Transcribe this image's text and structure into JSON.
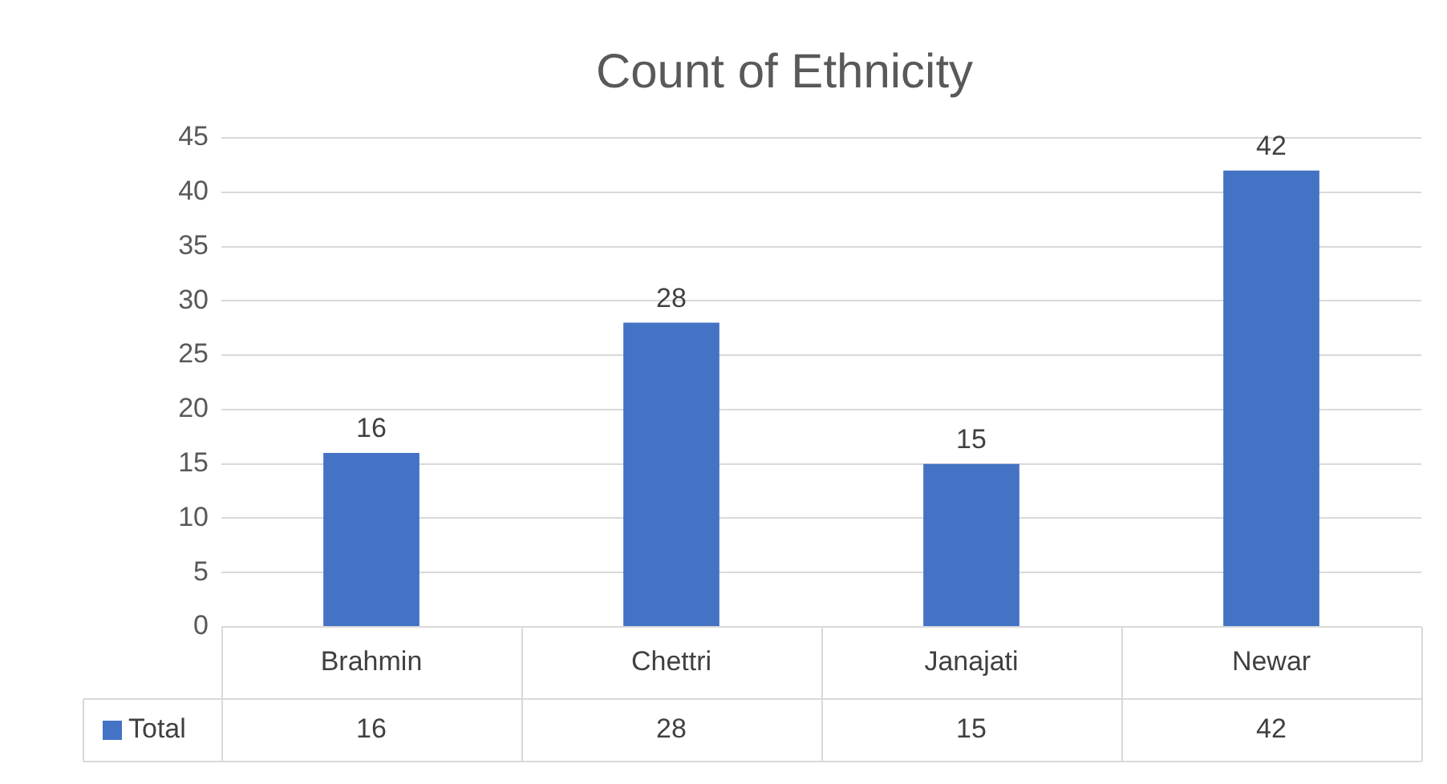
{
  "chart_data": {
    "type": "bar",
    "title": "Count of Ethnicity",
    "categories": [
      "Brahmin",
      "Chettri",
      "Janajati",
      "Newar"
    ],
    "series": [
      {
        "name": "Total",
        "color": "#4472c4",
        "values": [
          16,
          28,
          15,
          42
        ]
      }
    ],
    "ylim": [
      0,
      45
    ],
    "yticks": [
      0,
      5,
      10,
      15,
      20,
      25,
      30,
      35,
      40,
      45
    ],
    "grid": "y",
    "data_labels": true,
    "legend": "bottom",
    "annotations": [
      {
        "text": "16",
        "x": "Brahmin",
        "y": 16
      },
      {
        "text": "28",
        "x": "Chettri",
        "y": 28
      },
      {
        "text": "15",
        "x": "Janajati",
        "y": 15
      },
      {
        "text": "42",
        "x": "Newar",
        "y": 42
      }
    ]
  }
}
